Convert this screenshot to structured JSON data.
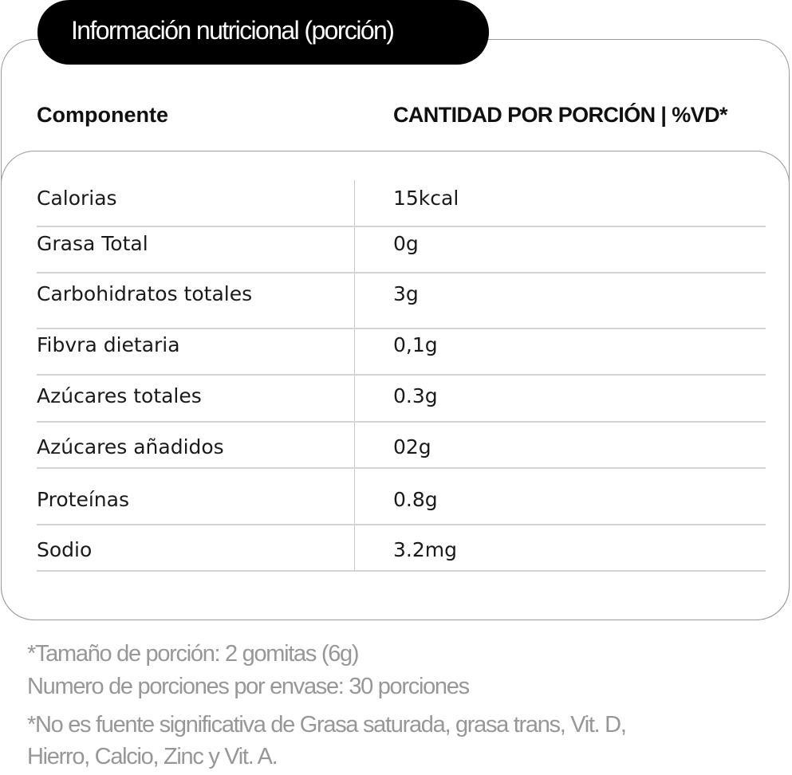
{
  "title": "Información nutricional (porción)",
  "table": {
    "headers": [
      "Componente",
      "CANTIDAD POR PORCIÓN | %VD*"
    ],
    "rows": [
      {
        "name": "Calorias",
        "value": "15kcal"
      },
      {
        "name": "Grasa Total",
        "value": "0g"
      },
      {
        "name": "Carbohidratos totales",
        "value": "3g"
      },
      {
        "name": "Fibvra dietaria",
        "value": "0,1g"
      },
      {
        "name": "Azúcares totales",
        "value": "0.3g"
      },
      {
        "name": "Azúcares añadidos",
        "value": "02g"
      },
      {
        "name": "Proteínas",
        "value": "0.8g"
      },
      {
        "name": "Sodio",
        "value": "3.2mg"
      }
    ]
  },
  "footnotes": [
    "*Tamaño de porción: 2 gomitas (6g)",
    "Numero de porciones por envase: 30 porciones",
    "*No es fuente significativa de Grasa saturada, grasa trans, Vit. D,",
    "Hierro, Calcio, Zinc y Vit. A."
  ]
}
